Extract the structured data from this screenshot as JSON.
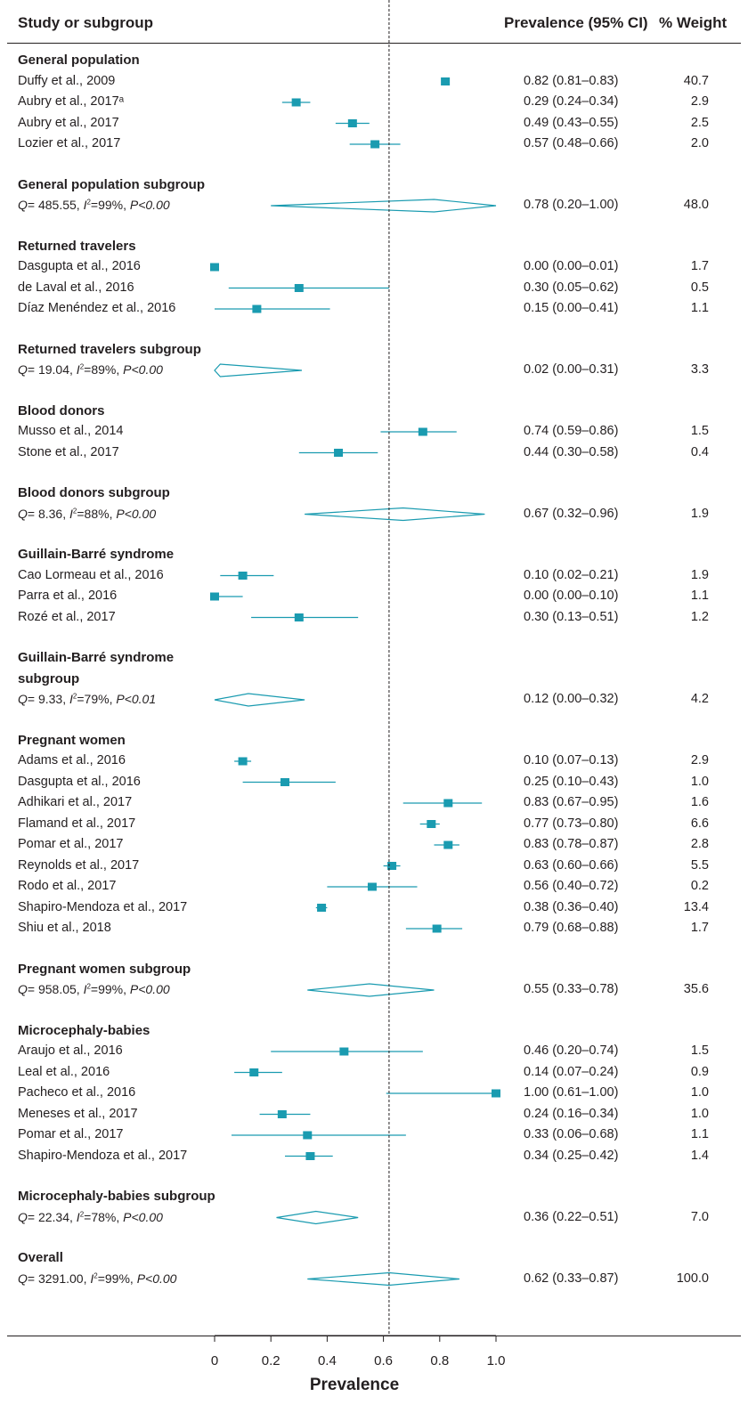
{
  "headers": {
    "study": "Study or subgroup",
    "prevalence": "Prevalence (95% CI)",
    "weight": "% Weight"
  },
  "colors": {
    "marker": "#1a9bb0",
    "line": "#231f20"
  },
  "rows": [
    {
      "kind": "group",
      "label": "General population"
    },
    {
      "kind": "study",
      "label": "Duffy et al., 2009",
      "est": 0.82,
      "lo": 0.81,
      "hi": 0.83,
      "ci": "0.82 (0.81–0.83)",
      "weight": "40.7"
    },
    {
      "kind": "study",
      "label": "Aubry et al., 2017ᵃ",
      "est": 0.29,
      "lo": 0.24,
      "hi": 0.34,
      "ci": "0.29 (0.24–0.34)",
      "weight": "2.9"
    },
    {
      "kind": "study",
      "label": "Aubry et al., 2017",
      "est": 0.49,
      "lo": 0.43,
      "hi": 0.55,
      "ci": "0.49 (0.43–0.55)",
      "weight": "2.5"
    },
    {
      "kind": "study",
      "label": "Lozier et al., 2017",
      "est": 0.57,
      "lo": 0.48,
      "hi": 0.66,
      "ci": "0.57 (0.48–0.66)",
      "weight": "2.0"
    },
    {
      "kind": "spacer"
    },
    {
      "kind": "subgroup",
      "label": "General population subgroup",
      "q": "485.55",
      "i2": "99%",
      "p": "P<0.00",
      "est": 0.78,
      "lo": 0.2,
      "hi": 1.0,
      "ci": "0.78 (0.20–1.00)",
      "weight": "48.0"
    },
    {
      "kind": "spacer"
    },
    {
      "kind": "group",
      "label": "Returned travelers"
    },
    {
      "kind": "study",
      "label": " Dasgupta et al., 2016",
      "est": 0.0,
      "lo": 0.0,
      "hi": 0.01,
      "ci": "0.00 (0.00–0.01)",
      "weight": "1.7"
    },
    {
      "kind": "study",
      "label": "de Laval et al., 2016",
      "est": 0.3,
      "lo": 0.05,
      "hi": 0.62,
      "ci": "0.30 (0.05–0.62)",
      "weight": "0.5"
    },
    {
      "kind": "study",
      "label": "Díaz Menéndez et al., 2016",
      "est": 0.15,
      "lo": 0.0,
      "hi": 0.41,
      "ci": "0.15 (0.00–0.41)",
      "weight": "1.1"
    },
    {
      "kind": "spacer"
    },
    {
      "kind": "subgroup",
      "label": "Returned travelers subgroup",
      "q": "19.04",
      "i2": "89%",
      "p": "P<0.00",
      "est": 0.02,
      "lo": 0.0,
      "hi": 0.31,
      "ci": "0.02 (0.00–0.31)",
      "weight": "3.3"
    },
    {
      "kind": "spacer"
    },
    {
      "kind": "group",
      "label": "Blood donors"
    },
    {
      "kind": "study",
      "label": "Musso et al., 2014",
      "est": 0.74,
      "lo": 0.59,
      "hi": 0.86,
      "ci": "0.74 (0.59–0.86)",
      "weight": "1.5"
    },
    {
      "kind": "study",
      "label": "Stone et al., 2017",
      "est": 0.44,
      "lo": 0.3,
      "hi": 0.58,
      "ci": "0.44 (0.30–0.58)",
      "weight": "0.4"
    },
    {
      "kind": "spacer"
    },
    {
      "kind": "subgroup",
      "label": "Blood donors subgroup",
      "q": "8.36",
      "i2": "88%",
      "p": "P<0.00",
      "est": 0.67,
      "lo": 0.32,
      "hi": 0.96,
      "ci": "0.67 (0.32–0.96)",
      "weight": "1.9"
    },
    {
      "kind": "spacer"
    },
    {
      "kind": "group",
      "label": "Guillain-Barré syndrome"
    },
    {
      "kind": "study",
      "label": "Cao Lormeau et al., 2016",
      "est": 0.1,
      "lo": 0.02,
      "hi": 0.21,
      "ci": "0.10 (0.02–0.21)",
      "weight": "1.9"
    },
    {
      "kind": "study",
      "label": "Parra et al., 2016",
      "est": 0.0,
      "lo": 0.0,
      "hi": 0.1,
      "ci": "0.00 (0.00–0.10)",
      "weight": "1.1"
    },
    {
      "kind": "study",
      "label": "Rozé et al., 2017",
      "est": 0.3,
      "lo": 0.13,
      "hi": 0.51,
      "ci": "0.30 (0.13–0.51)",
      "weight": "1.2"
    },
    {
      "kind": "spacer"
    },
    {
      "kind": "group",
      "label": "Guillain-Barré syndrome"
    },
    {
      "kind": "group",
      "label": "subgroup"
    },
    {
      "kind": "subgroup",
      "label": "",
      "q": "9.33",
      "i2": "79%",
      "p": "P<0.01",
      "est": 0.12,
      "lo": 0.0,
      "hi": 0.32,
      "ci": "0.12 (0.00–0.32)",
      "weight": "4.2"
    },
    {
      "kind": "spacer"
    },
    {
      "kind": "group",
      "label": "Pregnant women"
    },
    {
      "kind": "study",
      "label": "Adams et al., 2016",
      "est": 0.1,
      "lo": 0.07,
      "hi": 0.13,
      "ci": "0.10 (0.07–0.13)",
      "weight": "2.9"
    },
    {
      "kind": "study",
      "label": "Dasgupta et al., 2016",
      "est": 0.25,
      "lo": 0.1,
      "hi": 0.43,
      "ci": "0.25 (0.10–0.43)",
      "weight": "1.0"
    },
    {
      "kind": "study",
      "label": "Adhikari et al., 2017",
      "est": 0.83,
      "lo": 0.67,
      "hi": 0.95,
      "ci": "0.83 (0.67–0.95)",
      "weight": "1.6"
    },
    {
      "kind": "study",
      "label": "Flamand et al., 2017",
      "est": 0.77,
      "lo": 0.73,
      "hi": 0.8,
      "ci": "0.77 (0.73–0.80)",
      "weight": "6.6"
    },
    {
      "kind": "study",
      "label": "Pomar et al., 2017",
      "est": 0.83,
      "lo": 0.78,
      "hi": 0.87,
      "ci": "0.83 (0.78–0.87)",
      "weight": "2.8"
    },
    {
      "kind": "study",
      "label": "Reynolds et al., 2017",
      "est": 0.63,
      "lo": 0.6,
      "hi": 0.66,
      "ci": "0.63 (0.60–0.66)",
      "weight": "5.5"
    },
    {
      "kind": "study",
      "label": "Rodo et al., 2017",
      "est": 0.56,
      "lo": 0.4,
      "hi": 0.72,
      "ci": "0.56 (0.40–0.72)",
      "weight": "0.2"
    },
    {
      "kind": "study",
      "label": "Shapiro-Mendoza et al., 2017",
      "est": 0.38,
      "lo": 0.36,
      "hi": 0.4,
      "ci": "0.38 (0.36–0.40)",
      "weight": "13.4"
    },
    {
      "kind": "study",
      "label": "Shiu et al., 2018",
      "est": 0.79,
      "lo": 0.68,
      "hi": 0.88,
      "ci": "0.79 (0.68–0.88)",
      "weight": "1.7"
    },
    {
      "kind": "spacer"
    },
    {
      "kind": "subgroup",
      "label": "Pregnant women subgroup",
      "q": "958.05",
      "i2": "99%",
      "p": "P<0.00",
      "est": 0.55,
      "lo": 0.33,
      "hi": 0.78,
      "ci": "0.55 (0.33–0.78)",
      "weight": "35.6"
    },
    {
      "kind": "spacer"
    },
    {
      "kind": "group",
      "label": "Microcephaly-babies"
    },
    {
      "kind": "study",
      "label": "Araujo et al., 2016",
      "est": 0.46,
      "lo": 0.2,
      "hi": 0.74,
      "ci": "0.46 (0.20–0.74)",
      "weight": "1.5"
    },
    {
      "kind": "study",
      "label": "Leal et al., 2016",
      "est": 0.14,
      "lo": 0.07,
      "hi": 0.24,
      "ci": "0.14 (0.07–0.24)",
      "weight": "0.9"
    },
    {
      "kind": "study",
      "label": "Pacheco et al., 2016",
      "est": 1.0,
      "lo": 0.61,
      "hi": 1.0,
      "ci": "1.00 (0.61–1.00)",
      "weight": "1.0"
    },
    {
      "kind": "study",
      "label": "Meneses et al., 2017",
      "est": 0.24,
      "lo": 0.16,
      "hi": 0.34,
      "ci": "0.24 (0.16–0.34)",
      "weight": "1.0"
    },
    {
      "kind": "study",
      "label": "Pomar et al., 2017",
      "est": 0.33,
      "lo": 0.06,
      "hi": 0.68,
      "ci": "0.33 (0.06–0.68)",
      "weight": "1.1"
    },
    {
      "kind": "study",
      "label": "Shapiro-Mendoza et al., 2017",
      "est": 0.34,
      "lo": 0.25,
      "hi": 0.42,
      "ci": "0.34 (0.25–0.42)",
      "weight": "1.4"
    },
    {
      "kind": "spacer"
    },
    {
      "kind": "subgroup",
      "label": "Microcephaly-babies subgroup",
      "q": "22.34",
      "i2": "78%",
      "p": "P<0.00",
      "est": 0.36,
      "lo": 0.22,
      "hi": 0.51,
      "ci": "0.36 (0.22–0.51)",
      "weight": "7.0"
    },
    {
      "kind": "spacer"
    },
    {
      "kind": "subgroup",
      "label": "Overall",
      "q": "3291.00",
      "i2": "99%",
      "p": "P<0.00",
      "est": 0.62,
      "lo": 0.33,
      "hi": 0.87,
      "ci": "0.62 (0.33–0.87)",
      "weight": "100.0"
    }
  ],
  "chart_data": {
    "type": "forest",
    "xlabel": "Prevalence",
    "xlim": [
      0,
      1
    ],
    "xticks": [
      "0",
      "0.2",
      "0.4",
      "0.6",
      "0.8",
      "1.0"
    ],
    "reference_line": 0.62,
    "studies": [
      {
        "group": "General population",
        "name": "Duffy et al., 2009",
        "est": 0.82,
        "lo": 0.81,
        "hi": 0.83,
        "weight": 40.7
      },
      {
        "group": "General population",
        "name": "Aubry et al., 2017ᵃ",
        "est": 0.29,
        "lo": 0.24,
        "hi": 0.34,
        "weight": 2.9
      },
      {
        "group": "General population",
        "name": "Aubry et al., 2017",
        "est": 0.49,
        "lo": 0.43,
        "hi": 0.55,
        "weight": 2.5
      },
      {
        "group": "General population",
        "name": "Lozier et al., 2017",
        "est": 0.57,
        "lo": 0.48,
        "hi": 0.66,
        "weight": 2.0
      }
    ],
    "pooled_overall": {
      "est": 0.62,
      "lo": 0.33,
      "hi": 0.87,
      "weight": 100.0
    }
  }
}
